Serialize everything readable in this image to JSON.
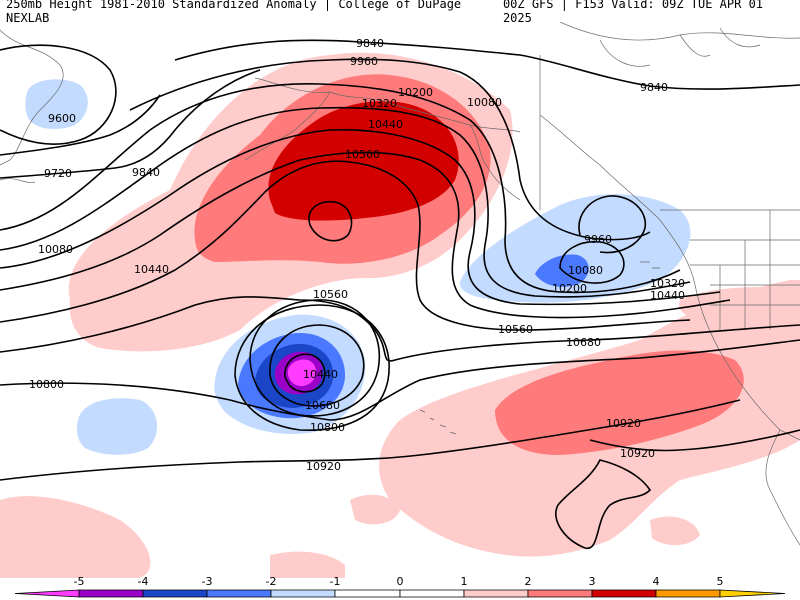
{
  "title_left": "250mb Height 1981-2010 Standardized Anomaly | College of DuPage NEXLAB",
  "title_right": "00Z GFS | F153 Valid: 09Z TUE APR 01 2025",
  "colors": {
    "neg5": "#ff3cff",
    "neg4": "#9b00c8",
    "neg3": "#1b46c8",
    "neg2": "#4a78ff",
    "neg1": "#c3dbff",
    "zero": "#ffffff",
    "pos1": "#ffcccc",
    "pos2": "#ff7a7a",
    "pos3": "#d30000",
    "pos4": "#ff9900",
    "pos5": "#ffd000",
    "contour": "#000000",
    "coast": "#6a6a6a"
  },
  "contour_labels": [
    {
      "text": "9840",
      "key": "c9840a"
    },
    {
      "text": "9960",
      "key": "c9960a"
    },
    {
      "text": "10200",
      "key": "c10200a"
    },
    {
      "text": "10080",
      "key": "c10080a"
    },
    {
      "text": "10320",
      "key": "c10320a"
    },
    {
      "text": "10440",
      "key": "c10440a"
    },
    {
      "text": "10560",
      "key": "c10560a"
    },
    {
      "text": "9840",
      "key": "c9840b"
    },
    {
      "text": "9600",
      "key": "c9600"
    },
    {
      "text": "9720",
      "key": "c9720"
    },
    {
      "text": "9840",
      "key": "c9840c"
    },
    {
      "text": "10080",
      "key": "c10080b"
    },
    {
      "text": "10440",
      "key": "c10440b"
    },
    {
      "text": "9960",
      "key": "c9960b"
    },
    {
      "text": "10080",
      "key": "c10080c"
    },
    {
      "text": "10200",
      "key": "c10200b"
    },
    {
      "text": "10320",
      "key": "c10320b"
    },
    {
      "text": "10440",
      "key": "c10440c"
    },
    {
      "text": "10560",
      "key": "c10560b"
    },
    {
      "text": "10560",
      "key": "c10560c"
    },
    {
      "text": "10680",
      "key": "c10680a"
    },
    {
      "text": "10440",
      "key": "c10440d"
    },
    {
      "text": "10680",
      "key": "c10680b"
    },
    {
      "text": "10800",
      "key": "c10800a"
    },
    {
      "text": "10800",
      "key": "c10800b"
    },
    {
      "text": "10920",
      "key": "c10920a"
    },
    {
      "text": "10920",
      "key": "c10920b"
    },
    {
      "text": "10920",
      "key": "c10920c"
    }
  ],
  "colorbar": {
    "ticks": [
      "-5",
      "-4",
      "-3",
      "-2",
      "-1",
      "0",
      "1",
      "2",
      "3",
      "4",
      "5"
    ]
  }
}
